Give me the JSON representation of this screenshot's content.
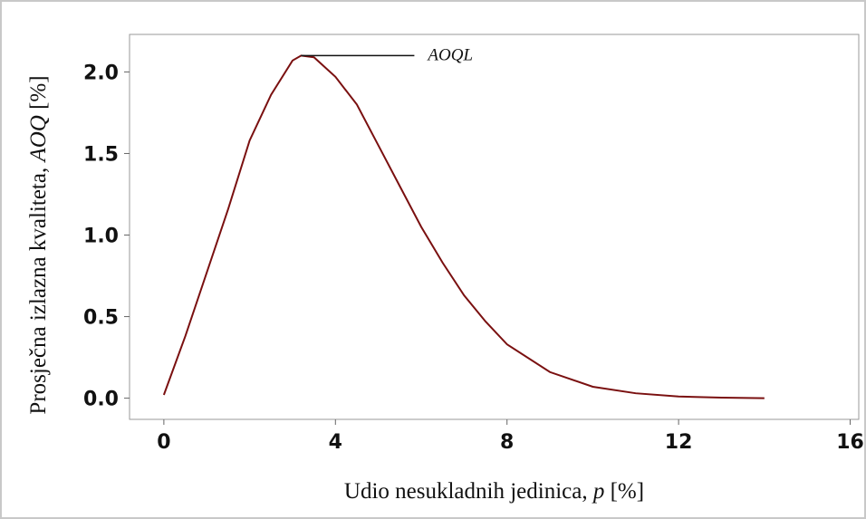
{
  "chart_data": {
    "type": "line",
    "xlabel": [
      "Udio nesukladnih jedinica, ",
      "p",
      " [%]"
    ],
    "ylabel": [
      "Prosječna izlazna kvaliteta, ",
      "AOQ",
      " [%]"
    ],
    "annotation": "AOQL",
    "x": [
      0,
      0.5,
      1,
      1.5,
      2,
      2.5,
      3,
      3.2,
      3.5,
      4,
      4.5,
      5,
      5.5,
      6,
      6.5,
      7,
      7.5,
      8,
      9,
      10,
      11,
      12,
      13,
      14
    ],
    "series": [
      {
        "color": "#7a1010",
        "values": [
          0.02,
          0.38,
          0.77,
          1.16,
          1.58,
          1.86,
          2.07,
          2.1,
          2.09,
          1.97,
          1.8,
          1.55,
          1.3,
          1.05,
          0.83,
          0.63,
          0.47,
          0.33,
          0.16,
          0.07,
          0.03,
          0.01,
          0.003,
          0
        ]
      }
    ],
    "xlim": [
      -0.8,
      16.2
    ],
    "xticks": [
      0,
      4,
      8,
      12,
      16
    ],
    "ylim": [
      -0.13,
      2.23
    ],
    "yticks": [
      {
        "value": 0,
        "label": "0.0"
      },
      {
        "value": 0.5,
        "label": "0.5"
      },
      {
        "value": 1,
        "label": "1.0"
      },
      {
        "value": 1.5,
        "label": "1.5"
      },
      {
        "value": 2,
        "label": "2.0"
      }
    ]
  }
}
